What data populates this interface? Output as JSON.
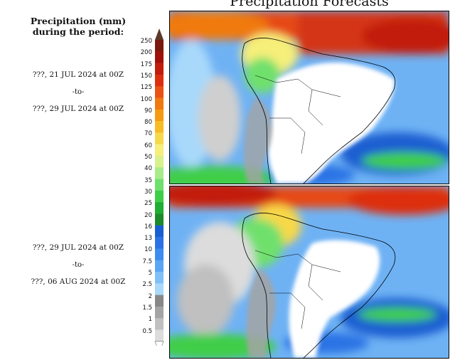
{
  "title": "Precipitation Forecasts",
  "legend_heading": [
    "Precipitation (mm)",
    "during the period:"
  ],
  "periods": [
    {
      "start": "???, 21 JUL 2024 at 00Z",
      "sep": "-to-",
      "end": "???, 29 JUL 2024 at 00Z"
    },
    {
      "start": "???, 29 JUL 2024 at 00Z",
      "sep": "-to-",
      "end": "???, 06 AUG 2024 at 00Z"
    }
  ],
  "legend": {
    "unit": "mm",
    "ticks": [
      "250",
      "200",
      "175",
      "150",
      "125",
      "100",
      "90",
      "80",
      "70",
      "60",
      "50",
      "40",
      "35",
      "30",
      "25",
      "20",
      "16",
      "13",
      "10",
      "7.5",
      "5",
      "2.5",
      "2",
      "1.5",
      "1",
      "0.5"
    ],
    "colors": [
      "#7a1a0e",
      "#a01008",
      "#c21c0d",
      "#dd2f10",
      "#ea5214",
      "#f07a10",
      "#f59a12",
      "#f8bc24",
      "#f7d84a",
      "#f6ef7a",
      "#d7f28c",
      "#a6ec8a",
      "#6fe06d",
      "#3fce49",
      "#1eae33",
      "#1c8c2a",
      "#1a5fd1",
      "#2b73e5",
      "#3d8cef",
      "#5aa6f4",
      "#80c0f8",
      "#a8d9fb",
      "#888888",
      "#a4a4a4",
      "#c0c0c0",
      "#dcdcdc"
    ]
  },
  "colors": {
    "ocean_base": "#3d8cef",
    "land_dry": "#ffffff",
    "border": "#000000"
  }
}
